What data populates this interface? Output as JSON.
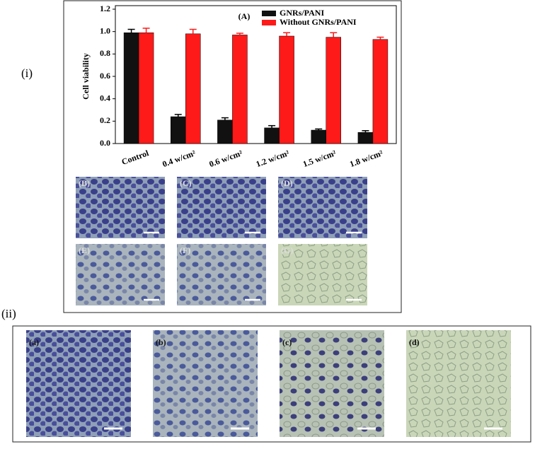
{
  "chart_data": {
    "type": "bar",
    "title": "(A)",
    "ylabel": "Cell viability",
    "categories": [
      "Control",
      "0.4 w/cm²",
      "0.6 w/cm²",
      "1.2 w/cm²",
      "1.5 w/cm²",
      "1.8 w/cm²"
    ],
    "series": [
      {
        "name": "GNRs/PANI",
        "color": "#111111",
        "values": [
          0.99,
          0.24,
          0.21,
          0.14,
          0.12,
          0.1
        ],
        "errors": [
          0.03,
          0.02,
          0.02,
          0.02,
          0.01,
          0.015
        ]
      },
      {
        "name": "Without GNRs/PANI",
        "color": "#ff1a1a",
        "values": [
          0.99,
          0.98,
          0.97,
          0.96,
          0.95,
          0.93
        ],
        "errors": [
          0.04,
          0.04,
          0.015,
          0.03,
          0.04,
          0.02
        ]
      }
    ],
    "ylim": [
      0,
      1.2
    ],
    "yticks": [
      {
        "value": 0,
        "label": "0.0"
      },
      {
        "value": 0.2,
        "label": "0.2"
      },
      {
        "value": 0.4,
        "label": "0.4"
      },
      {
        "value": 0.6,
        "label": "0.6"
      },
      {
        "value": 0.8,
        "label": "0.8"
      },
      {
        "value": 1.0,
        "label": "1.0"
      },
      {
        "value": 1.2,
        "label": "1.2"
      }
    ],
    "legend": "upper right",
    "grid": false
  },
  "panels": {
    "first": "(i)",
    "second": "(ii)",
    "upper_images": [
      "(B)",
      "(C)",
      "(D)",
      "(E)",
      "(F)",
      "(G)"
    ],
    "lower_images": [
      "(a)",
      "(b)",
      "(c)",
      "(d)"
    ]
  }
}
